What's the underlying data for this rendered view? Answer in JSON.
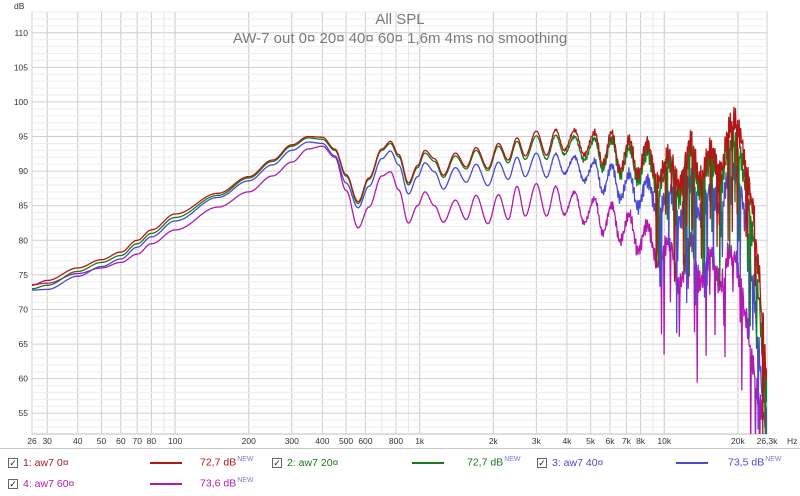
{
  "chart_data": {
    "type": "line",
    "title": "All SPL",
    "subtitle": "AW-7 out  0¤ 20¤ 40¤ 60¤ 1,6m 4ms no smoothing",
    "ylabel": "dB",
    "xlabel": "Hz",
    "xscale": "log",
    "xlim": [
      26,
      26300
    ],
    "ylim": [
      52,
      113
    ],
    "y_ticks": [
      55,
      60,
      65,
      70,
      75,
      80,
      85,
      90,
      95,
      100,
      105,
      110
    ],
    "x_ticks": [
      {
        "v": 26,
        "label": "26"
      },
      {
        "v": 30,
        "label": "30"
      },
      {
        "v": 40,
        "label": "40"
      },
      {
        "v": 50,
        "label": "50"
      },
      {
        "v": 60,
        "label": "60"
      },
      {
        "v": 70,
        "label": "70"
      },
      {
        "v": 80,
        "label": "80"
      },
      {
        "v": 100,
        "label": "100"
      },
      {
        "v": 200,
        "label": "200"
      },
      {
        "v": 300,
        "label": "300"
      },
      {
        "v": 400,
        "label": "400"
      },
      {
        "v": 500,
        "label": "500"
      },
      {
        "v": 600,
        "label": "600"
      },
      {
        "v": 800,
        "label": "800"
      },
      {
        "v": 1000,
        "label": "1k"
      },
      {
        "v": 2000,
        "label": "2k"
      },
      {
        "v": 3000,
        "label": "3k"
      },
      {
        "v": 4000,
        "label": "4k"
      },
      {
        "v": 5000,
        "label": "5k"
      },
      {
        "v": 6000,
        "label": "6k"
      },
      {
        "v": 7000,
        "label": "7k"
      },
      {
        "v": 8000,
        "label": "8k"
      },
      {
        "v": 10000,
        "label": "10k"
      },
      {
        "v": 20000,
        "label": "20k"
      },
      {
        "v": 26300,
        "label": "26,3k"
      }
    ],
    "grid": true,
    "series": [
      {
        "name": "1: aw7 0¤",
        "value": "72,7 dB",
        "badge": "NEW",
        "color": "#b01818",
        "points": [
          [
            26,
            73.5
          ],
          [
            30,
            74.2
          ],
          [
            40,
            76
          ],
          [
            50,
            77.2
          ],
          [
            60,
            78.3
          ],
          [
            70,
            80
          ],
          [
            80,
            81.5
          ],
          [
            100,
            83.8
          ],
          [
            150,
            86.8
          ],
          [
            200,
            89.2
          ],
          [
            250,
            91.6
          ],
          [
            300,
            93.8
          ],
          [
            350,
            95
          ],
          [
            400,
            94.9
          ],
          [
            450,
            93.2
          ],
          [
            500,
            89.5
          ],
          [
            560,
            85.6
          ],
          [
            620,
            89
          ],
          [
            700,
            93.2
          ],
          [
            760,
            94.3
          ],
          [
            820,
            92.4
          ],
          [
            900,
            88.3
          ],
          [
            980,
            90.8
          ],
          [
            1050,
            93
          ],
          [
            1150,
            91.8
          ],
          [
            1250,
            89.4
          ],
          [
            1400,
            92.6
          ],
          [
            1550,
            90.6
          ],
          [
            1700,
            93.4
          ],
          [
            1900,
            90.4
          ],
          [
            2100,
            94
          ],
          [
            2300,
            91.6
          ],
          [
            2500,
            94.8
          ],
          [
            2700,
            92.2
          ],
          [
            3000,
            95.8
          ],
          [
            3300,
            92.3
          ],
          [
            3600,
            96
          ],
          [
            3900,
            93
          ],
          [
            4300,
            95.9
          ],
          [
            4700,
            92.4
          ],
          [
            5200,
            95.6
          ],
          [
            5600,
            91
          ],
          [
            6100,
            95.6
          ],
          [
            6600,
            90.2
          ],
          [
            7200,
            94.5
          ],
          [
            7800,
            89.4
          ],
          [
            8500,
            94.1
          ],
          [
            9400,
            88.5
          ],
          [
            10500,
            92.5
          ],
          [
            11500,
            88
          ],
          [
            12800,
            94.3
          ],
          [
            14000,
            88.5
          ],
          [
            15500,
            93.2
          ],
          [
            17000,
            90
          ],
          [
            18500,
            96.3
          ],
          [
            19500,
            97.3
          ],
          [
            20500,
            95
          ],
          [
            21500,
            91
          ],
          [
            23000,
            85
          ],
          [
            24300,
            76
          ],
          [
            25200,
            68
          ],
          [
            26300,
            60
          ]
        ]
      },
      {
        "name": "2: aw7 20¤",
        "value": "72,7 dB",
        "badge": "NEW",
        "color": "#1a7a1a",
        "points": [
          [
            26,
            73
          ],
          [
            30,
            73.5
          ],
          [
            40,
            75.5
          ],
          [
            50,
            76.8
          ],
          [
            60,
            77.8
          ],
          [
            70,
            79.5
          ],
          [
            80,
            81
          ],
          [
            100,
            83.3
          ],
          [
            150,
            86.5
          ],
          [
            200,
            89
          ],
          [
            250,
            91.4
          ],
          [
            300,
            93.6
          ],
          [
            350,
            94.8
          ],
          [
            400,
            94.6
          ],
          [
            450,
            93
          ],
          [
            500,
            89.3
          ],
          [
            560,
            85.3
          ],
          [
            620,
            88.8
          ],
          [
            700,
            93
          ],
          [
            760,
            94
          ],
          [
            820,
            92.1
          ],
          [
            900,
            88
          ],
          [
            980,
            90.5
          ],
          [
            1050,
            92.6
          ],
          [
            1150,
            91.4
          ],
          [
            1250,
            89.1
          ],
          [
            1400,
            92.2
          ],
          [
            1550,
            90.3
          ],
          [
            1700,
            93
          ],
          [
            1900,
            90.1
          ],
          [
            2100,
            93.6
          ],
          [
            2300,
            91.2
          ],
          [
            2500,
            94.3
          ],
          [
            2700,
            91.7
          ],
          [
            3000,
            95.1
          ],
          [
            3300,
            91.7
          ],
          [
            3600,
            95.2
          ],
          [
            3900,
            92.4
          ],
          [
            4300,
            95
          ],
          [
            4700,
            91.6
          ],
          [
            5200,
            94.7
          ],
          [
            5600,
            90.2
          ],
          [
            6100,
            94.6
          ],
          [
            6600,
            89.4
          ],
          [
            7200,
            93.3
          ],
          [
            7800,
            88.4
          ],
          [
            8500,
            92.8
          ],
          [
            9400,
            87.2
          ],
          [
            10500,
            91.3
          ],
          [
            11500,
            86.5
          ],
          [
            12800,
            92.8
          ],
          [
            14000,
            87
          ],
          [
            15500,
            92
          ],
          [
            17000,
            88.3
          ],
          [
            18500,
            93.8
          ],
          [
            19500,
            94.5
          ],
          [
            20500,
            92.2
          ],
          [
            21500,
            88
          ],
          [
            23000,
            81
          ],
          [
            24300,
            72
          ],
          [
            25200,
            64
          ],
          [
            26300,
            58
          ]
        ]
      },
      {
        "name": "3: aw7 40¤",
        "value": "73,5 dB",
        "badge": "NEW",
        "color": "#4a4acf",
        "points": [
          [
            26,
            72.8
          ],
          [
            30,
            72.9
          ],
          [
            40,
            74.8
          ],
          [
            50,
            76.2
          ],
          [
            60,
            77.3
          ],
          [
            70,
            79
          ],
          [
            80,
            80.5
          ],
          [
            100,
            82.8
          ],
          [
            150,
            86.2
          ],
          [
            200,
            88.6
          ],
          [
            250,
            90.9
          ],
          [
            300,
            93
          ],
          [
            350,
            94.2
          ],
          [
            400,
            94
          ],
          [
            450,
            92.2
          ],
          [
            500,
            88.3
          ],
          [
            560,
            84.7
          ],
          [
            620,
            87.8
          ],
          [
            700,
            91.8
          ],
          [
            760,
            92.9
          ],
          [
            820,
            90.9
          ],
          [
            900,
            86.7
          ],
          [
            980,
            89.2
          ],
          [
            1050,
            91.2
          ],
          [
            1150,
            89.9
          ],
          [
            1250,
            87.4
          ],
          [
            1400,
            90.5
          ],
          [
            1550,
            88.4
          ],
          [
            1700,
            91
          ],
          [
            1900,
            87.9
          ],
          [
            2100,
            91.3
          ],
          [
            2300,
            88.8
          ],
          [
            2500,
            92
          ],
          [
            2700,
            89.2
          ],
          [
            3000,
            92.6
          ],
          [
            3300,
            89.1
          ],
          [
            3600,
            92.5
          ],
          [
            3900,
            89.6
          ],
          [
            4300,
            92.1
          ],
          [
            4700,
            88.6
          ],
          [
            5200,
            91.4
          ],
          [
            5600,
            86.9
          ],
          [
            6100,
            90.9
          ],
          [
            6600,
            86
          ],
          [
            7200,
            89.5
          ],
          [
            7800,
            84.8
          ],
          [
            8500,
            88.8
          ],
          [
            9400,
            83.8
          ],
          [
            10500,
            87.2
          ],
          [
            11500,
            83
          ],
          [
            12800,
            88.4
          ],
          [
            14000,
            83.5
          ],
          [
            15500,
            87.5
          ],
          [
            17000,
            84.5
          ],
          [
            18500,
            89.6
          ],
          [
            19500,
            90.1
          ],
          [
            20500,
            87.5
          ],
          [
            21500,
            83
          ],
          [
            23000,
            74
          ],
          [
            24300,
            64
          ],
          [
            25200,
            58
          ],
          [
            26300,
            55
          ]
        ]
      },
      {
        "name": "4: aw7 60¤",
        "value": "73,6 dB",
        "badge": "NEW",
        "color": "#b01ab0",
        "points": [
          [
            26,
            73.6
          ],
          [
            30,
            73.8
          ],
          [
            40,
            75.2
          ],
          [
            50,
            76
          ],
          [
            60,
            76.8
          ],
          [
            70,
            78
          ],
          [
            80,
            79.5
          ],
          [
            100,
            81.5
          ],
          [
            150,
            84.8
          ],
          [
            200,
            87
          ],
          [
            250,
            89.3
          ],
          [
            300,
            91.3
          ],
          [
            350,
            93.2
          ],
          [
            400,
            93.6
          ],
          [
            450,
            92
          ],
          [
            500,
            87.2
          ],
          [
            560,
            81.8
          ],
          [
            620,
            84.8
          ],
          [
            700,
            89.3
          ],
          [
            760,
            89.9
          ],
          [
            820,
            87.3
          ],
          [
            900,
            82.5
          ],
          [
            980,
            85
          ],
          [
            1050,
            87
          ],
          [
            1150,
            85
          ],
          [
            1250,
            82.6
          ],
          [
            1400,
            85.8
          ],
          [
            1550,
            83
          ],
          [
            1700,
            86.5
          ],
          [
            1900,
            82.4
          ],
          [
            2100,
            86.6
          ],
          [
            2300,
            83
          ],
          [
            2500,
            87.8
          ],
          [
            2700,
            83.5
          ],
          [
            3000,
            88.2
          ],
          [
            3300,
            83.5
          ],
          [
            3600,
            87.8
          ],
          [
            3900,
            83.7
          ],
          [
            4300,
            87
          ],
          [
            4700,
            82.5
          ],
          [
            5200,
            86
          ],
          [
            5600,
            81
          ],
          [
            6100,
            85.2
          ],
          [
            6600,
            79.8
          ],
          [
            7200,
            83.7
          ],
          [
            7800,
            78.5
          ],
          [
            8500,
            82.3
          ],
          [
            9400,
            76.5
          ],
          [
            10500,
            80
          ],
          [
            11500,
            73.5
          ],
          [
            12800,
            80
          ],
          [
            14000,
            74
          ],
          [
            15500,
            78.3
          ],
          [
            17000,
            73.5
          ],
          [
            18500,
            78
          ],
          [
            19500,
            77.5
          ],
          [
            20500,
            74
          ],
          [
            21500,
            69
          ],
          [
            23000,
            62
          ],
          [
            24300,
            57
          ],
          [
            25200,
            55
          ],
          [
            26300,
            53
          ]
        ]
      }
    ]
  }
}
